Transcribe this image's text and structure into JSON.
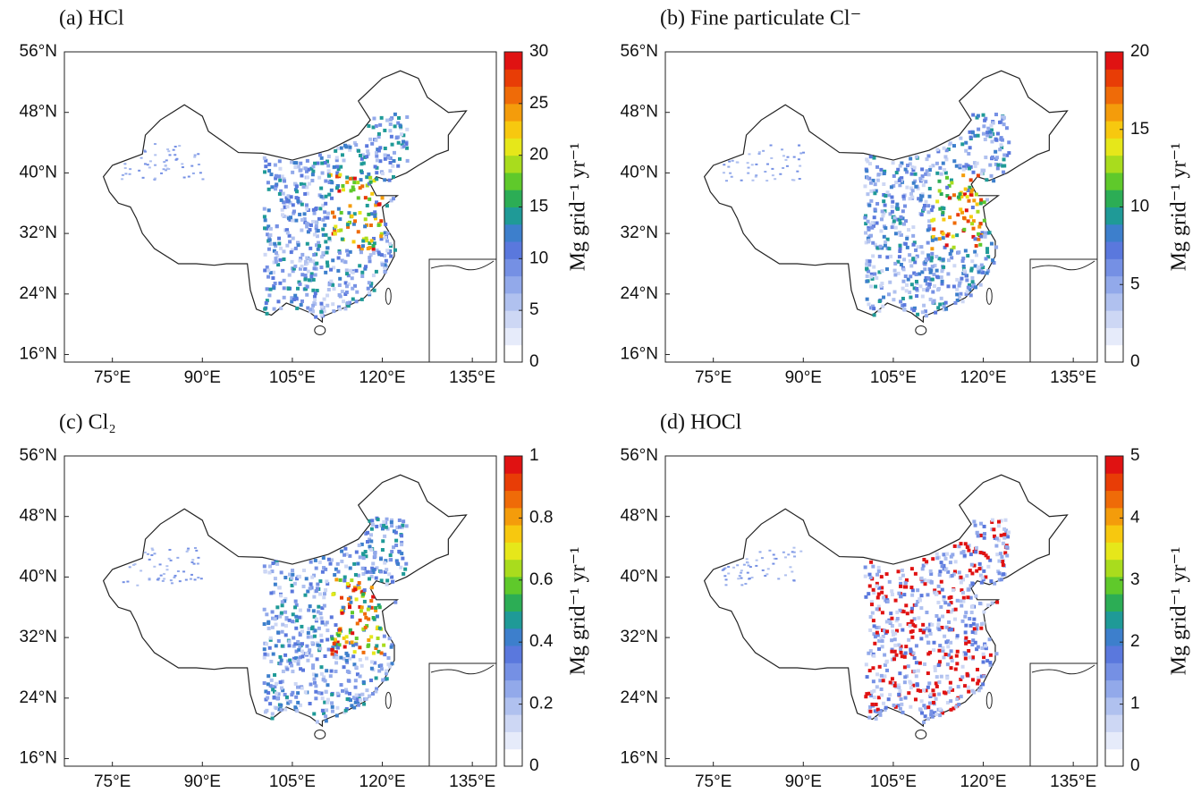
{
  "chart_data": [
    {
      "type": "map",
      "title": "(a) HCl",
      "xlim": [
        67,
        139
      ],
      "ylim": [
        15,
        56
      ],
      "xticks": [
        {
          "value": 75,
          "label": "75°E"
        },
        {
          "value": 90,
          "label": "90°E"
        },
        {
          "value": 105,
          "label": "105°E"
        },
        {
          "value": 120,
          "label": "120°E"
        },
        {
          "value": 135,
          "label": "135°E"
        }
      ],
      "yticks": [
        {
          "value": 16,
          "label": "16°N"
        },
        {
          "value": 24,
          "label": "24°N"
        },
        {
          "value": 32,
          "label": "32°N"
        },
        {
          "value": 40,
          "label": "40°N"
        },
        {
          "value": 48,
          "label": "48°N"
        },
        {
          "value": 56,
          "label": "56°N"
        }
      ],
      "colorbar": {
        "label": "Mg grid⁻¹ yr⁻¹",
        "lim": [
          0,
          30
        ],
        "ticks": [
          0,
          5,
          10,
          15,
          20,
          25,
          30
        ]
      },
      "colormap": [
        "#ffffff",
        "#e6ebfa",
        "#cdd7f4",
        "#b0c1ef",
        "#92a9ea",
        "#7590e4",
        "#5a78dd",
        "#3d7fcc",
        "#1f9a97",
        "#2cad55",
        "#5fc92b",
        "#a9dc1d",
        "#e6e71a",
        "#f7c80f",
        "#f49c0b",
        "#ef6b08",
        "#e83d06",
        "#e01212"
      ]
    },
    {
      "type": "map",
      "title": "(b) Fine particulate Cl⁻",
      "xlim": [
        67,
        139
      ],
      "ylim": [
        15,
        56
      ],
      "xticks": [
        {
          "value": 75,
          "label": "75°E"
        },
        {
          "value": 90,
          "label": "90°E"
        },
        {
          "value": 105,
          "label": "105°E"
        },
        {
          "value": 120,
          "label": "120°E"
        },
        {
          "value": 135,
          "label": "135°E"
        }
      ],
      "yticks": [
        {
          "value": 16,
          "label": "16°N"
        },
        {
          "value": 24,
          "label": "24°N"
        },
        {
          "value": 32,
          "label": "32°N"
        },
        {
          "value": 40,
          "label": "40°N"
        },
        {
          "value": 48,
          "label": "48°N"
        },
        {
          "value": 56,
          "label": "56°N"
        }
      ],
      "colorbar": {
        "label": "Mg grid⁻¹ yr⁻¹",
        "lim": [
          0,
          20
        ],
        "ticks": [
          0,
          5,
          10,
          15,
          20
        ]
      },
      "colormap": [
        "#ffffff",
        "#e6ebfa",
        "#cdd7f4",
        "#b0c1ef",
        "#92a9ea",
        "#7590e4",
        "#5a78dd",
        "#3d7fcc",
        "#1f9a97",
        "#2cad55",
        "#5fc92b",
        "#a9dc1d",
        "#e6e71a",
        "#f7c80f",
        "#f49c0b",
        "#ef6b08",
        "#e83d06",
        "#e01212"
      ]
    },
    {
      "type": "map",
      "title": "(c) Cl₂",
      "xlim": [
        67,
        139
      ],
      "ylim": [
        15,
        56
      ],
      "xticks": [
        {
          "value": 75,
          "label": "75°E"
        },
        {
          "value": 90,
          "label": "90°E"
        },
        {
          "value": 105,
          "label": "105°E"
        },
        {
          "value": 120,
          "label": "120°E"
        },
        {
          "value": 135,
          "label": "135°E"
        }
      ],
      "yticks": [
        {
          "value": 16,
          "label": "16°N"
        },
        {
          "value": 24,
          "label": "24°N"
        },
        {
          "value": 32,
          "label": "32°N"
        },
        {
          "value": 40,
          "label": "40°N"
        },
        {
          "value": 48,
          "label": "48°N"
        },
        {
          "value": 56,
          "label": "56°N"
        }
      ],
      "colorbar": {
        "label": "Mg grid⁻¹ yr⁻¹",
        "lim": [
          0,
          1
        ],
        "ticks": [
          0,
          0.2,
          0.4,
          0.6,
          0.8,
          1
        ]
      },
      "colormap": [
        "#ffffff",
        "#e6ebfa",
        "#cdd7f4",
        "#b0c1ef",
        "#92a9ea",
        "#7590e4",
        "#5a78dd",
        "#3d7fcc",
        "#1f9a97",
        "#2cad55",
        "#5fc92b",
        "#a9dc1d",
        "#e6e71a",
        "#f7c80f",
        "#f49c0b",
        "#ef6b08",
        "#e83d06",
        "#e01212"
      ]
    },
    {
      "type": "map",
      "title": "(d) HOCl",
      "xlim": [
        67,
        139
      ],
      "ylim": [
        15,
        56
      ],
      "xticks": [
        {
          "value": 75,
          "label": "75°E"
        },
        {
          "value": 90,
          "label": "90°E"
        },
        {
          "value": 105,
          "label": "105°E"
        },
        {
          "value": 120,
          "label": "120°E"
        },
        {
          "value": 135,
          "label": "135°E"
        }
      ],
      "yticks": [
        {
          "value": 16,
          "label": "16°N"
        },
        {
          "value": 24,
          "label": "24°N"
        },
        {
          "value": 32,
          "label": "32°N"
        },
        {
          "value": 40,
          "label": "40°N"
        },
        {
          "value": 48,
          "label": "48°N"
        },
        {
          "value": 56,
          "label": "56°N"
        }
      ],
      "colorbar": {
        "label": "Mg grid⁻¹ yr⁻¹",
        "lim": [
          0,
          5
        ],
        "ticks": [
          0,
          1,
          2,
          3,
          4,
          5
        ]
      },
      "colormap": [
        "#ffffff",
        "#e6ebfa",
        "#cdd7f4",
        "#b0c1ef",
        "#92a9ea",
        "#7590e4",
        "#5a78dd",
        "#3d7fcc",
        "#1f9a97",
        "#2cad55",
        "#5fc92b",
        "#a9dc1d",
        "#e6e71a",
        "#f7c80f",
        "#f49c0b",
        "#ef6b08",
        "#e83d06",
        "#e01212"
      ]
    }
  ]
}
